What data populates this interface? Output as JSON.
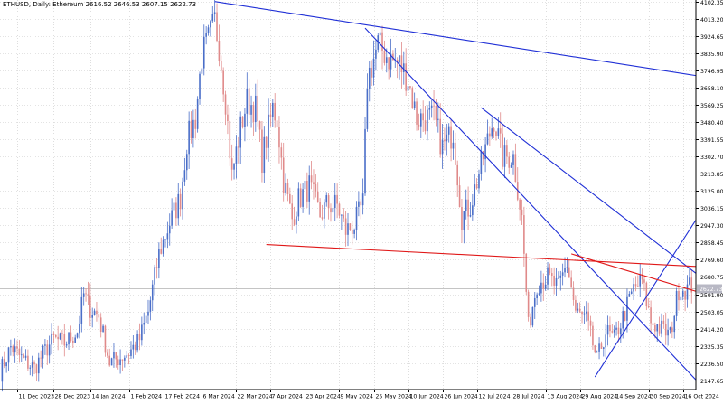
{
  "header": {
    "symbol": "ETHUSD",
    "timeframe": "Daily",
    "name": "Ethereum",
    "ohlc_text": "2616.52 2646.53 2607.15 2622.73",
    "full": "ETHUSD, Daily:  Ethereum   2616.52 2646.53 2607.15 2622.73"
  },
  "colors": {
    "background": "#ffffff",
    "grid": "#c8c8c8",
    "bull": "#4a6ec8",
    "bear": "#e08a8a",
    "trend_blue": "#1f2fd6",
    "trend_red": "#e01818",
    "price_tag": "#b8b8c4",
    "axis_text": "#000000"
  },
  "chart_data": {
    "type": "candlestick",
    "symbol": "ETHUSD",
    "interval": "Daily",
    "last_price": "2622.73",
    "y_axis": {
      "ticks": [
        "4102.35",
        "4013.20",
        "3924.65",
        "3835.90",
        "3746.95",
        "3658.10",
        "3569.25",
        "3480.40",
        "3391.55",
        "3302.70",
        "3213.85",
        "3125.00",
        "3036.15",
        "2947.30",
        "2858.45",
        "2769.60",
        "2680.75",
        "2591.90",
        "2503.05",
        "2414.20",
        "2325.35",
        "2236.50",
        "2147.65"
      ],
      "range": [
        2100,
        4110
      ]
    },
    "x_axis": {
      "ticks": [
        "11 Dec 2023",
        "28 Dec 2023",
        "14 Jan 2024",
        "1 Feb 2024",
        "17 Feb 2024",
        "6 Mar 2024",
        "22 Mar 2024",
        "7 Apr 2024",
        "23 Apr 2024",
        "9 May 2024",
        "25 May 2024",
        "10 Jun 2024",
        "26 Jun 2024",
        "12 Jul 2024",
        "28 Jul 2024",
        "13 Aug 2024",
        "29 Aug 2024",
        "14 Sep 2024",
        "30 Sep 2024",
        "16 Oct 2024"
      ],
      "start": "2023-12-03",
      "end": "2024-10-22"
    },
    "price_path": [
      [
        "2023-12-03",
        2190
      ],
      [
        "2023-12-08",
        2320
      ],
      [
        "2023-12-14",
        2250
      ],
      [
        "2023-12-19",
        2210
      ],
      [
        "2023-12-24",
        2300
      ],
      [
        "2023-12-28",
        2360
      ],
      [
        "2024-01-02",
        2340
      ],
      [
        "2024-01-08",
        2400
      ],
      [
        "2024-01-11",
        2590
      ],
      [
        "2024-01-14",
        2520
      ],
      [
        "2024-01-18",
        2480
      ],
      [
        "2024-01-23",
        2240
      ],
      [
        "2024-01-27",
        2260
      ],
      [
        "2024-02-01",
        2290
      ],
      [
        "2024-02-06",
        2360
      ],
      [
        "2024-02-10",
        2500
      ],
      [
        "2024-02-15",
        2800
      ],
      [
        "2024-02-20",
        2960
      ],
      [
        "2024-02-25",
        3090
      ],
      [
        "2024-02-28",
        3380
      ],
      [
        "2024-03-03",
        3500
      ],
      [
        "2024-03-06",
        3820
      ],
      [
        "2024-03-09",
        3900
      ],
      [
        "2024-03-12",
        4000
      ],
      [
        "2024-03-14",
        3880
      ],
      [
        "2024-03-17",
        3600
      ],
      [
        "2024-03-20",
        3200
      ],
      [
        "2024-03-24",
        3450
      ],
      [
        "2024-03-27",
        3590
      ],
      [
        "2024-03-31",
        3550
      ],
      [
        "2024-04-03",
        3290
      ],
      [
        "2024-04-08",
        3550
      ],
      [
        "2024-04-10",
        3500
      ],
      [
        "2024-04-13",
        3180
      ],
      [
        "2024-04-17",
        2980
      ],
      [
        "2024-04-20",
        3080
      ],
      [
        "2024-04-25",
        3150
      ],
      [
        "2024-04-30",
        3000
      ],
      [
        "2024-05-03",
        3050
      ],
      [
        "2024-05-08",
        3050
      ],
      [
        "2024-05-12",
        2920
      ],
      [
        "2024-05-16",
        2950
      ],
      [
        "2024-05-20",
        3060
      ],
      [
        "2024-05-22",
        3700
      ],
      [
        "2024-05-27",
        3880
      ],
      [
        "2024-06-01",
        3810
      ],
      [
        "2024-06-06",
        3780
      ],
      [
        "2024-06-10",
        3700
      ],
      [
        "2024-06-14",
        3500
      ],
      [
        "2024-06-18",
        3500
      ],
      [
        "2024-06-22",
        3500
      ],
      [
        "2024-06-26",
        3350
      ],
      [
        "2024-07-01",
        3430
      ],
      [
        "2024-07-05",
        2990
      ],
      [
        "2024-07-09",
        3050
      ],
      [
        "2024-07-15",
        3300
      ],
      [
        "2024-07-20",
        3500
      ],
      [
        "2024-07-24",
        3300
      ],
      [
        "2024-07-29",
        3300
      ],
      [
        "2024-08-02",
        2980
      ],
      [
        "2024-08-05",
        2420
      ],
      [
        "2024-08-09",
        2650
      ],
      [
        "2024-08-14",
        2680
      ],
      [
        "2024-08-19",
        2620
      ],
      [
        "2024-08-23",
        2750
      ],
      [
        "2024-08-27",
        2500
      ],
      [
        "2024-09-01",
        2460
      ],
      [
        "2024-09-06",
        2250
      ],
      [
        "2024-09-10",
        2400
      ],
      [
        "2024-09-14",
        2360
      ],
      [
        "2024-09-19",
        2500
      ],
      [
        "2024-09-23",
        2620
      ],
      [
        "2024-09-27",
        2660
      ],
      [
        "2024-10-01",
        2450
      ],
      [
        "2024-10-05",
        2420
      ],
      [
        "2024-10-10",
        2380
      ],
      [
        "2024-10-14",
        2620
      ],
      [
        "2024-10-18",
        2620
      ],
      [
        "2024-10-20",
        2640
      ]
    ],
    "trend_lines": [
      {
        "color": "blue",
        "from": [
          "2024-03-12",
          4102
        ],
        "to": [
          "2024-10-22",
          3720
        ]
      },
      {
        "color": "blue",
        "from": [
          "2024-05-21",
          3965
        ],
        "to": [
          "2024-10-22",
          2150
        ]
      },
      {
        "color": "blue",
        "from": [
          "2024-07-14",
          3555
        ],
        "to": [
          "2024-10-22",
          2700
        ]
      },
      {
        "color": "blue",
        "from": [
          "2024-09-05",
          2165
        ],
        "to": [
          "2024-10-22",
          2975
        ]
      },
      {
        "color": "red",
        "from": [
          "2024-04-05",
          2848
        ],
        "to": [
          "2024-10-22",
          2735
        ]
      },
      {
        "color": "red",
        "from": [
          "2024-08-25",
          2800
        ],
        "to": [
          "2024-10-22",
          2607
        ]
      }
    ],
    "price_level_line": 2622.73
  }
}
